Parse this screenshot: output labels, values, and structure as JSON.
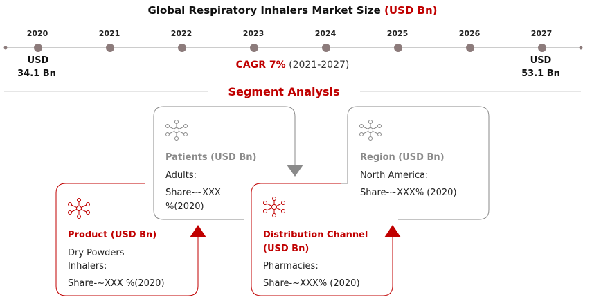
{
  "title": {
    "main": "Global Respiratory Inhalers Market Size",
    "unit": "(USD Bn)"
  },
  "timeline": {
    "years": [
      "2020",
      "2021",
      "2022",
      "2023",
      "2024",
      "2025",
      "2026",
      "2027"
    ],
    "start": {
      "line1": "USD",
      "line2": "34.1 Bn"
    },
    "end": {
      "line1": "USD",
      "line2": "53.1 Bn"
    },
    "cagr": {
      "label": "CAGR 7%",
      "period": "(2021-2027)"
    }
  },
  "segment_title": "Segment Analysis",
  "cards": {
    "patients": {
      "title": "Patients (USD Bn)",
      "line1": "Adults:",
      "line2": "Share-~XXX",
      "line3": "%(2020)"
    },
    "region": {
      "title": "Region (USD Bn)",
      "line1": "North America:",
      "line2": "Share-~XXX% (2020)"
    },
    "product": {
      "title": "Product (USD Bn)",
      "line1": "Dry Powders",
      "line2": "Inhalers:",
      "line3": "Share-~XXX %(2020)"
    },
    "distribution": {
      "title_line1": "Distribution Channel",
      "title_line2": "(USD Bn)",
      "line1": "Pharmacies:",
      "line2": "Share-~XXX% (2020)"
    }
  },
  "colors": {
    "accent": "#c00000",
    "gray": "#8a8a8a",
    "line": "#999999",
    "dot": "#8c7b7b"
  },
  "icons": {
    "card": "network-hub-icon",
    "up": "arrow-up-icon",
    "down": "arrow-down-icon"
  }
}
